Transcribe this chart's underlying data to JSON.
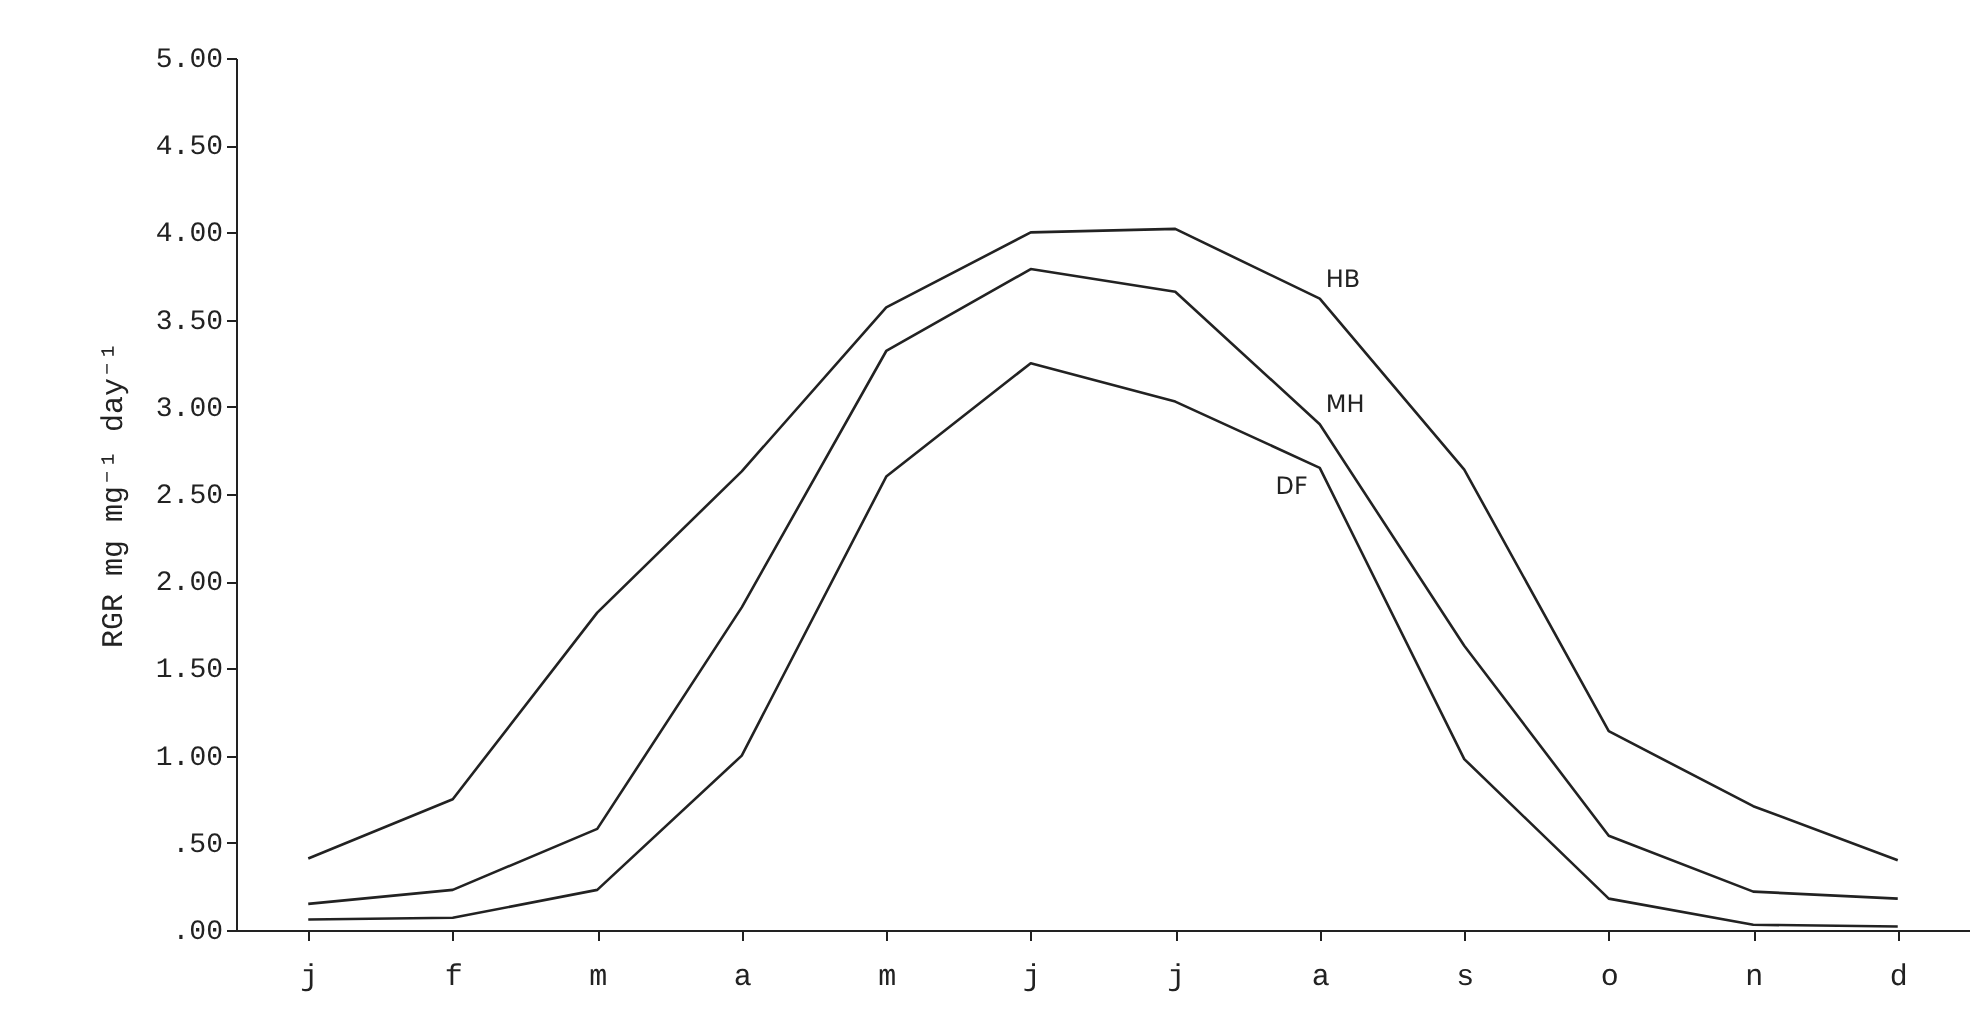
{
  "chart_data": {
    "type": "line",
    "ylabel": "RGR mg mg⁻¹ day⁻¹",
    "categories": [
      "j",
      "f",
      "m",
      "a",
      "m",
      "j",
      "j",
      "a",
      "s",
      "o",
      "n",
      "d"
    ],
    "ylim": [
      0,
      5
    ],
    "yticks": [
      {
        "value": 0,
        "label": ".00"
      },
      {
        "value": 0.5,
        "label": ".50"
      },
      {
        "value": 1,
        "label": "1.00"
      },
      {
        "value": 1.5,
        "label": "1.50"
      },
      {
        "value": 2,
        "label": "2.00"
      },
      {
        "value": 2.5,
        "label": "2.50"
      },
      {
        "value": 3,
        "label": "3.00"
      },
      {
        "value": 3.5,
        "label": "3.50"
      },
      {
        "value": 4,
        "label": "4.00"
      },
      {
        "value": 4.5,
        "label": "4.50"
      },
      {
        "value": 5,
        "label": "5.00"
      }
    ],
    "grid": false,
    "legend": false,
    "marker": "none",
    "line_style": "solid",
    "series": [
      {
        "name": "HB",
        "color": "#222222",
        "values": [
          0.41,
          0.75,
          1.82,
          2.63,
          3.57,
          4.0,
          4.02,
          3.62,
          2.64,
          1.14,
          0.71,
          0.4
        ]
      },
      {
        "name": "MH",
        "color": "#222222",
        "values": [
          0.15,
          0.23,
          0.58,
          1.85,
          3.32,
          3.79,
          3.66,
          2.9,
          1.63,
          0.54,
          0.22,
          0.18
        ]
      },
      {
        "name": "DF",
        "color": "#222222",
        "values": [
          0.06,
          0.07,
          0.23,
          1.0,
          2.6,
          3.25,
          3.03,
          2.65,
          0.98,
          0.18,
          0.03,
          0.02
        ]
      }
    ]
  }
}
